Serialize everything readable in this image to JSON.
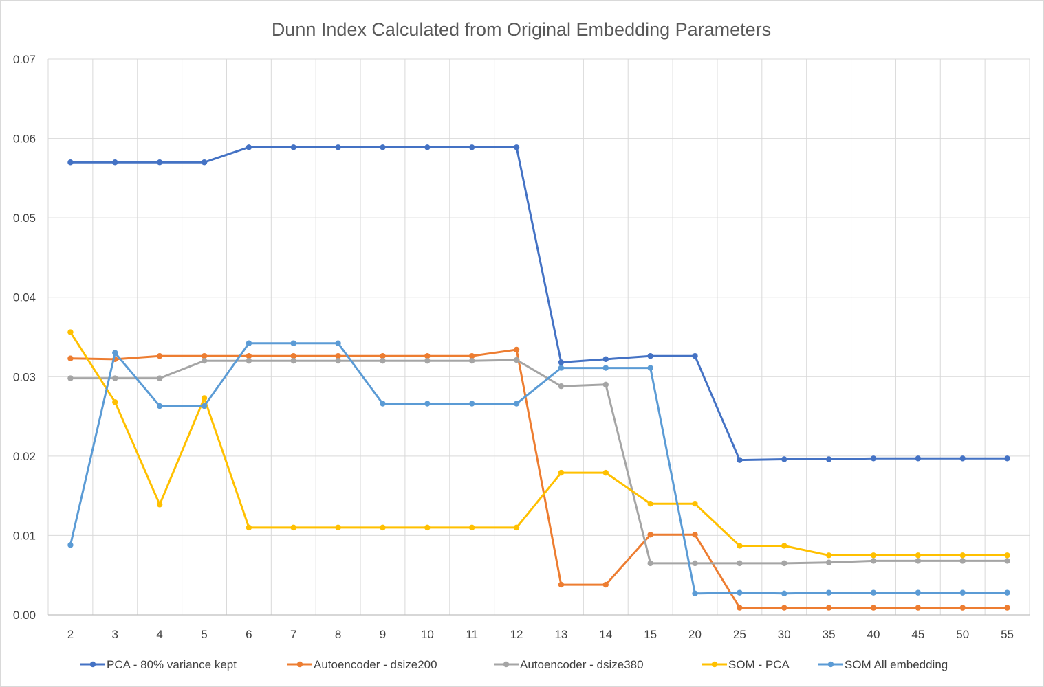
{
  "chart_data": {
    "type": "line",
    "title": "Dunn Index Calculated from Original Embedding Parameters",
    "xlabel": "",
    "ylabel": "",
    "categories": [
      "2",
      "3",
      "4",
      "5",
      "6",
      "7",
      "8",
      "9",
      "10",
      "11",
      "12",
      "13",
      "14",
      "15",
      "20",
      "25",
      "30",
      "35",
      "40",
      "45",
      "50",
      "55"
    ],
    "ylim": [
      0,
      0.07
    ],
    "yticks": [
      "0.00",
      "0.01",
      "0.02",
      "0.03",
      "0.04",
      "0.05",
      "0.06",
      "0.07"
    ],
    "grid": true,
    "legend_position": "bottom",
    "series": [
      {
        "name": "PCA - 80% variance kept",
        "color": "#4472C4",
        "values": [
          0.057,
          0.057,
          0.057,
          0.057,
          0.0589,
          0.0589,
          0.0589,
          0.0589,
          0.0589,
          0.0589,
          0.0589,
          0.0318,
          0.0322,
          0.0326,
          0.0326,
          0.0195,
          0.0196,
          0.0196,
          0.0197,
          0.0197,
          0.0197,
          0.0197
        ]
      },
      {
        "name": "Autoencoder -  dsize200",
        "color": "#ED7D31",
        "values": [
          0.0323,
          0.0322,
          0.0326,
          0.0326,
          0.0326,
          0.0326,
          0.0326,
          0.0326,
          0.0326,
          0.0326,
          0.0334,
          0.0038,
          0.0038,
          0.0101,
          0.0101,
          0.0009,
          0.0009,
          0.0009,
          0.0009,
          0.0009,
          0.0009,
          0.0009
        ]
      },
      {
        "name": "Autoencoder - dsize380",
        "color": "#A5A5A5",
        "values": [
          0.0298,
          0.0298,
          0.0298,
          0.032,
          0.032,
          0.032,
          0.032,
          0.032,
          0.032,
          0.032,
          0.0321,
          0.0288,
          0.029,
          0.0065,
          0.0065,
          0.0065,
          0.0065,
          0.0066,
          0.0068,
          0.0068,
          0.0068,
          0.0068
        ]
      },
      {
        "name": "SOM - PCA",
        "color": "#FFC000",
        "values": [
          0.0356,
          0.0268,
          0.0139,
          0.0273,
          0.011,
          0.011,
          0.011,
          0.011,
          0.011,
          0.011,
          0.011,
          0.0179,
          0.0179,
          0.014,
          0.014,
          0.0087,
          0.0087,
          0.0075,
          0.0075,
          0.0075,
          0.0075,
          0.0075
        ]
      },
      {
        "name": "SOM All embedding",
        "color": "#5B9BD5",
        "values": [
          0.0088,
          0.033,
          0.0263,
          0.0263,
          0.0342,
          0.0342,
          0.0342,
          0.0266,
          0.0266,
          0.0266,
          0.0266,
          0.0311,
          0.0311,
          0.0311,
          0.0027,
          0.0028,
          0.0027,
          0.0028,
          0.0028,
          0.0028,
          0.0028,
          0.0028
        ]
      }
    ]
  }
}
